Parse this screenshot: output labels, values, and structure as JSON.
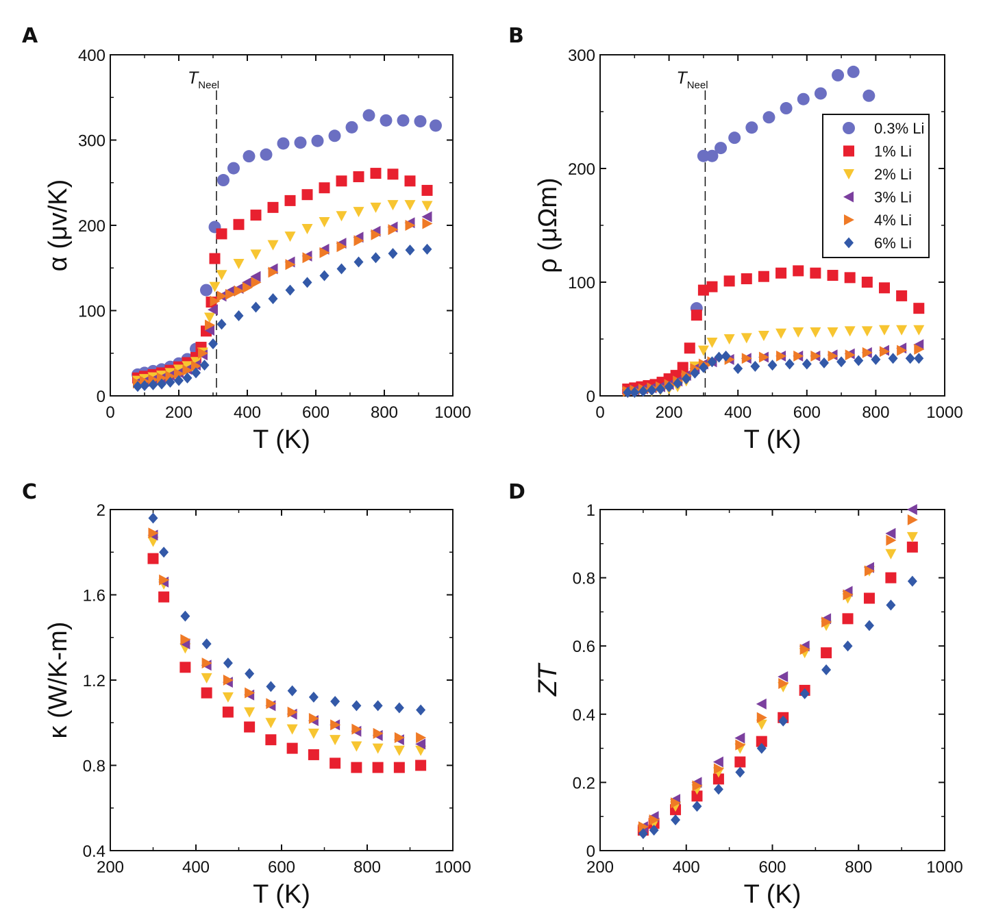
{
  "chart_data": [
    {
      "panel": "A",
      "type": "scatter",
      "xlabel": "T (K)",
      "ylabel": "α (μv/K)",
      "xlim": [
        0,
        1000
      ],
      "ylim": [
        0,
        400
      ],
      "xticks": [
        0,
        200,
        400,
        600,
        800,
        1000
      ],
      "yticks": [
        0,
        100,
        200,
        300,
        400
      ],
      "annotation": {
        "text": "T",
        "subscript": "Neel",
        "x": 310
      },
      "series": [
        {
          "name": "0.3% Li",
          "marker": "circle",
          "color": "#6b6fc2",
          "x": [
            80,
            100,
            125,
            150,
            175,
            200,
            225,
            250,
            280,
            305,
            330,
            360,
            405,
            455,
            505,
            555,
            605,
            655,
            705,
            755,
            805,
            855,
            905,
            950
          ],
          "y": [
            25,
            27,
            29,
            31,
            34,
            38,
            43,
            55,
            124,
            198,
            253,
            267,
            281,
            283,
            296,
            297,
            299,
            305,
            315,
            329,
            323,
            323,
            322,
            317
          ]
        },
        {
          "name": "1% Li",
          "marker": "square",
          "color": "#e8202f",
          "x": [
            80,
            100,
            125,
            150,
            175,
            200,
            225,
            250,
            265,
            280,
            295,
            305,
            325,
            375,
            425,
            475,
            525,
            575,
            625,
            675,
            725,
            775,
            825,
            875,
            925
          ],
          "y": [
            21,
            23,
            25,
            27,
            30,
            34,
            39,
            45,
            57,
            76,
            110,
            161,
            190,
            201,
            212,
            221,
            229,
            236,
            244,
            252,
            257,
            261,
            260,
            252,
            241
          ]
        },
        {
          "name": "2% Li",
          "marker": "tri-down",
          "color": "#f7c531",
          "x": [
            80,
            100,
            125,
            150,
            175,
            200,
            225,
            250,
            270,
            290,
            305,
            325,
            375,
            425,
            475,
            525,
            575,
            625,
            675,
            725,
            775,
            825,
            875,
            925
          ],
          "y": [
            18,
            20,
            22,
            24,
            27,
            31,
            35,
            40,
            51,
            92,
            128,
            142,
            155,
            166,
            177,
            187,
            196,
            204,
            211,
            216,
            221,
            224,
            224,
            223
          ]
        },
        {
          "name": "3% Li",
          "marker": "tri-left",
          "color": "#7b3f9e",
          "x": [
            80,
            100,
            125,
            150,
            175,
            200,
            225,
            250,
            270,
            290,
            300,
            325,
            350,
            375,
            400,
            425,
            475,
            525,
            575,
            625,
            675,
            725,
            775,
            825,
            875,
            925
          ],
          "y": [
            16,
            17,
            19,
            21,
            24,
            27,
            31,
            36,
            48,
            77,
            101,
            117,
            123,
            126,
            133,
            140,
            149,
            157,
            164,
            172,
            179,
            186,
            193,
            198,
            203,
            210
          ]
        },
        {
          "name": "4% Li",
          "marker": "tri-right",
          "color": "#ef7a26",
          "x": [
            80,
            100,
            125,
            150,
            175,
            200,
            225,
            250,
            270,
            290,
            305,
            325,
            350,
            375,
            400,
            425,
            475,
            525,
            575,
            625,
            675,
            725,
            775,
            825,
            875,
            925
          ],
          "y": [
            15,
            17,
            19,
            21,
            23,
            26,
            30,
            35,
            50,
            83,
            111,
            117,
            119,
            123,
            127,
            133,
            145,
            154,
            162,
            168,
            175,
            182,
            189,
            195,
            200,
            202
          ]
        },
        {
          "name": "6% Li",
          "marker": "diamond",
          "color": "#3359a8",
          "x": [
            80,
            100,
            125,
            150,
            175,
            200,
            225,
            250,
            275,
            300,
            325,
            375,
            425,
            475,
            525,
            575,
            625,
            675,
            725,
            775,
            825,
            875,
            925
          ],
          "y": [
            11,
            12,
            13,
            14,
            16,
            18,
            21,
            27,
            36,
            61,
            84,
            94,
            104,
            114,
            124,
            133,
            141,
            149,
            157,
            162,
            167,
            171,
            172
          ]
        }
      ]
    },
    {
      "panel": "B",
      "type": "scatter",
      "xlabel": "T (K)",
      "ylabel": "ρ (μΩm)",
      "xlim": [
        0,
        1000
      ],
      "ylim": [
        0,
        300
      ],
      "xticks": [
        0,
        200,
        400,
        600,
        800,
        1000
      ],
      "yticks": [
        0,
        100,
        200,
        300
      ],
      "annotation": {
        "text": "T",
        "subscript": "Neel",
        "x": 305
      },
      "legend": "top-right",
      "series": [
        {
          "name": "0.3% Li",
          "marker": "circle",
          "color": "#6b6fc2",
          "x": [
            280,
            300,
            325,
            350,
            390,
            440,
            490,
            540,
            590,
            640,
            690,
            735,
            780
          ],
          "y": [
            77,
            211,
            211,
            218,
            227,
            236,
            245,
            253,
            261,
            266,
            282,
            285,
            264
          ]
        },
        {
          "name": "1% Li",
          "marker": "square",
          "color": "#e8202f",
          "x": [
            80,
            100,
            120,
            140,
            160,
            180,
            200,
            220,
            240,
            260,
            280,
            300,
            325,
            375,
            425,
            475,
            525,
            575,
            625,
            675,
            725,
            775,
            825,
            875,
            925
          ],
          "y": [
            6,
            7,
            8,
            9,
            10,
            12,
            15,
            18,
            25,
            42,
            71,
            93,
            96,
            101,
            103,
            105,
            108,
            110,
            108,
            106,
            104,
            100,
            95,
            88,
            77
          ]
        },
        {
          "name": "2% Li",
          "marker": "tri-down",
          "color": "#f7c531",
          "x": [
            80,
            100,
            125,
            150,
            175,
            200,
            225,
            250,
            275,
            300,
            325,
            375,
            425,
            475,
            525,
            575,
            625,
            675,
            725,
            775,
            825,
            875,
            925
          ],
          "y": [
            3,
            3,
            4,
            4,
            5,
            6,
            8,
            13,
            26,
            40,
            47,
            50,
            51,
            53,
            55,
            56,
            56,
            56,
            57,
            57,
            58,
            58,
            58
          ]
        },
        {
          "name": "3% Li",
          "marker": "tri-left",
          "color": "#7b3f9e",
          "x": [
            80,
            100,
            125,
            150,
            175,
            200,
            225,
            250,
            275,
            300,
            325,
            375,
            425,
            475,
            525,
            575,
            625,
            675,
            725,
            775,
            825,
            875,
            925
          ],
          "y": [
            5,
            5,
            6,
            7,
            8,
            10,
            13,
            18,
            24,
            28,
            30,
            32,
            33,
            34,
            35,
            35,
            35,
            36,
            37,
            38,
            40,
            42,
            45
          ]
        },
        {
          "name": "4% Li",
          "marker": "tri-right",
          "color": "#ef7a26",
          "x": [
            80,
            100,
            125,
            150,
            175,
            200,
            225,
            250,
            275,
            300,
            325,
            375,
            425,
            475,
            525,
            575,
            625,
            675,
            725,
            775,
            825,
            875,
            925
          ],
          "y": [
            4,
            5,
            6,
            7,
            8,
            10,
            13,
            18,
            24,
            28,
            30,
            32,
            33,
            34,
            35,
            35,
            35,
            35,
            36,
            38,
            39,
            40,
            41
          ]
        },
        {
          "name": "6% Li",
          "marker": "diamond",
          "color": "#3359a8",
          "x": [
            80,
            100,
            125,
            150,
            175,
            200,
            225,
            250,
            275,
            300,
            325,
            345,
            365,
            400,
            450,
            500,
            550,
            600,
            650,
            700,
            750,
            800,
            850,
            900,
            925
          ],
          "y": [
            3,
            3,
            4,
            5,
            6,
            8,
            11,
            15,
            20,
            25,
            30,
            34,
            35,
            24,
            26,
            27,
            28,
            28,
            29,
            30,
            31,
            32,
            33,
            33,
            33
          ]
        }
      ]
    },
    {
      "panel": "C",
      "type": "scatter",
      "xlabel": "T (K)",
      "ylabel": "κ (W/K-m)",
      "xlim": [
        200,
        1000
      ],
      "ylim": [
        0.4,
        2
      ],
      "xticks": [
        200,
        400,
        600,
        800,
        1000
      ],
      "yticks": [
        0.4,
        0.8,
        1.2,
        1.6,
        2
      ],
      "series": [
        {
          "name": "1% Li",
          "marker": "square",
          "color": "#e8202f",
          "x": [
            300,
            325,
            375,
            425,
            475,
            525,
            575,
            625,
            675,
            725,
            775,
            825,
            875,
            925
          ],
          "y": [
            1.77,
            1.59,
            1.26,
            1.14,
            1.05,
            0.98,
            0.92,
            0.88,
            0.85,
            0.81,
            0.79,
            0.79,
            0.79,
            0.8
          ]
        },
        {
          "name": "2% Li",
          "marker": "tri-down",
          "color": "#f7c531",
          "x": [
            300,
            325,
            375,
            425,
            475,
            525,
            575,
            625,
            675,
            725,
            775,
            825,
            875,
            925
          ],
          "y": [
            1.85,
            1.65,
            1.35,
            1.21,
            1.12,
            1.05,
            1.0,
            0.97,
            0.95,
            0.92,
            0.89,
            0.88,
            0.87,
            0.87
          ]
        },
        {
          "name": "3% Li",
          "marker": "tri-left",
          "color": "#7b3f9e",
          "x": [
            300,
            325,
            375,
            425,
            475,
            525,
            575,
            625,
            675,
            725,
            775,
            825,
            875,
            925
          ],
          "y": [
            1.88,
            1.66,
            1.37,
            1.27,
            1.19,
            1.13,
            1.08,
            1.04,
            1.01,
            0.99,
            0.96,
            0.94,
            0.92,
            0.9
          ]
        },
        {
          "name": "4% Li",
          "marker": "tri-right",
          "color": "#ef7a26",
          "x": [
            300,
            325,
            375,
            425,
            475,
            525,
            575,
            625,
            675,
            725,
            775,
            825,
            875,
            925
          ],
          "y": [
            1.89,
            1.67,
            1.39,
            1.28,
            1.2,
            1.14,
            1.09,
            1.05,
            1.02,
            0.99,
            0.97,
            0.95,
            0.93,
            0.93
          ]
        },
        {
          "name": "6% Li",
          "marker": "diamond",
          "color": "#3359a8",
          "x": [
            300,
            325,
            375,
            425,
            475,
            525,
            575,
            625,
            675,
            725,
            775,
            825,
            875,
            925
          ],
          "y": [
            1.96,
            1.8,
            1.5,
            1.37,
            1.28,
            1.23,
            1.17,
            1.15,
            1.12,
            1.1,
            1.08,
            1.08,
            1.07,
            1.06
          ]
        }
      ]
    },
    {
      "panel": "D",
      "type": "scatter",
      "xlabel": "T (K)",
      "ylabel": "ZT",
      "xlim": [
        200,
        1000
      ],
      "ylim": [
        0,
        1
      ],
      "xticks": [
        200,
        400,
        600,
        800,
        1000
      ],
      "yticks": [
        0,
        0.2,
        0.4,
        0.6,
        0.8,
        1
      ],
      "series": [
        {
          "name": "1% Li",
          "marker": "square",
          "color": "#e8202f",
          "x": [
            300,
            325,
            375,
            425,
            475,
            525,
            575,
            625,
            675,
            725,
            775,
            825,
            875,
            925
          ],
          "y": [
            0.06,
            0.08,
            0.12,
            0.16,
            0.21,
            0.26,
            0.32,
            0.39,
            0.47,
            0.58,
            0.68,
            0.74,
            0.8,
            0.89
          ]
        },
        {
          "name": "2% Li",
          "marker": "tri-down",
          "color": "#f7c531",
          "x": [
            300,
            325,
            375,
            425,
            475,
            525,
            575,
            625,
            675,
            725,
            775,
            825,
            875,
            925
          ],
          "y": [
            0.06,
            0.08,
            0.13,
            0.18,
            0.23,
            0.3,
            0.37,
            0.48,
            0.58,
            0.66,
            0.74,
            0.82,
            0.87,
            0.92
          ]
        },
        {
          "name": "3% Li",
          "marker": "tri-left",
          "color": "#7b3f9e",
          "x": [
            300,
            325,
            375,
            425,
            475,
            525,
            575,
            625,
            675,
            725,
            775,
            825,
            875,
            925
          ],
          "y": [
            0.07,
            0.1,
            0.15,
            0.2,
            0.26,
            0.33,
            0.43,
            0.51,
            0.6,
            0.68,
            0.76,
            0.83,
            0.93,
            1.0
          ]
        },
        {
          "name": "4% Li",
          "marker": "tri-right",
          "color": "#ef7a26",
          "x": [
            300,
            325,
            375,
            425,
            475,
            525,
            575,
            625,
            675,
            725,
            775,
            825,
            875,
            925
          ],
          "y": [
            0.07,
            0.09,
            0.14,
            0.19,
            0.24,
            0.31,
            0.39,
            0.49,
            0.59,
            0.67,
            0.75,
            0.82,
            0.91,
            0.97
          ]
        },
        {
          "name": "6% Li",
          "marker": "diamond",
          "color": "#3359a8",
          "x": [
            300,
            325,
            375,
            425,
            475,
            525,
            575,
            625,
            675,
            725,
            775,
            825,
            875,
            925
          ],
          "y": [
            0.05,
            0.06,
            0.09,
            0.13,
            0.18,
            0.23,
            0.3,
            0.38,
            0.46,
            0.53,
            0.6,
            0.66,
            0.72,
            0.79
          ]
        }
      ]
    }
  ]
}
